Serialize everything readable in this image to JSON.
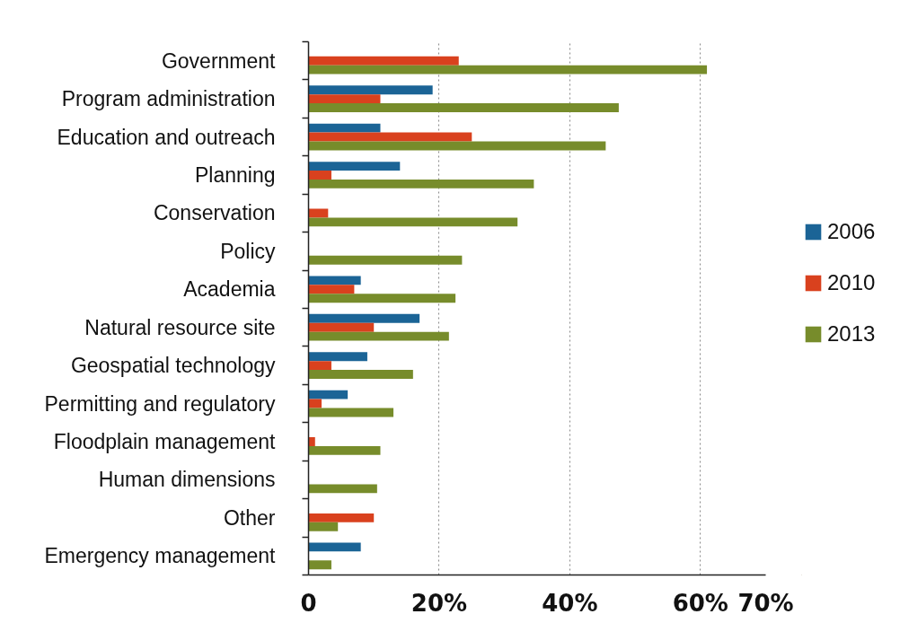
{
  "chart_data": {
    "type": "bar",
    "orientation": "horizontal",
    "categories": [
      "Government",
      "Program administration",
      "Education and outreach",
      "Planning",
      "Conservation",
      "Policy",
      "Academia",
      "Natural resource site",
      "Geospatial technology",
      "Permitting and regulatory",
      "Floodplain management",
      "Human dimensions",
      "Other",
      "Emergency management"
    ],
    "series": [
      {
        "name": "2006",
        "color": "#1b6496",
        "values": [
          null,
          19,
          11,
          14,
          null,
          null,
          8,
          17,
          9,
          6,
          null,
          null,
          null,
          8
        ]
      },
      {
        "name": "2010",
        "color": "#d9411e",
        "values": [
          23,
          11,
          25,
          3.5,
          3,
          null,
          7,
          10,
          3.5,
          2,
          1,
          null,
          10,
          null
        ]
      },
      {
        "name": "2013",
        "color": "#778c2b",
        "values": [
          61,
          47.5,
          45.5,
          34.5,
          32,
          23.5,
          22.5,
          21.5,
          16,
          13,
          11,
          10.5,
          4.5,
          3.5
        ]
      }
    ],
    "xlim": [
      0,
      70
    ],
    "xticks": [
      0,
      {
        "value": 20,
        "label": "20%"
      },
      {
        "value": 40,
        "label": "40%"
      },
      {
        "value": 60,
        "label": "60%"
      },
      {
        "value": 70,
        "label": "70%"
      }
    ],
    "grid": "x",
    "legend": "right"
  }
}
